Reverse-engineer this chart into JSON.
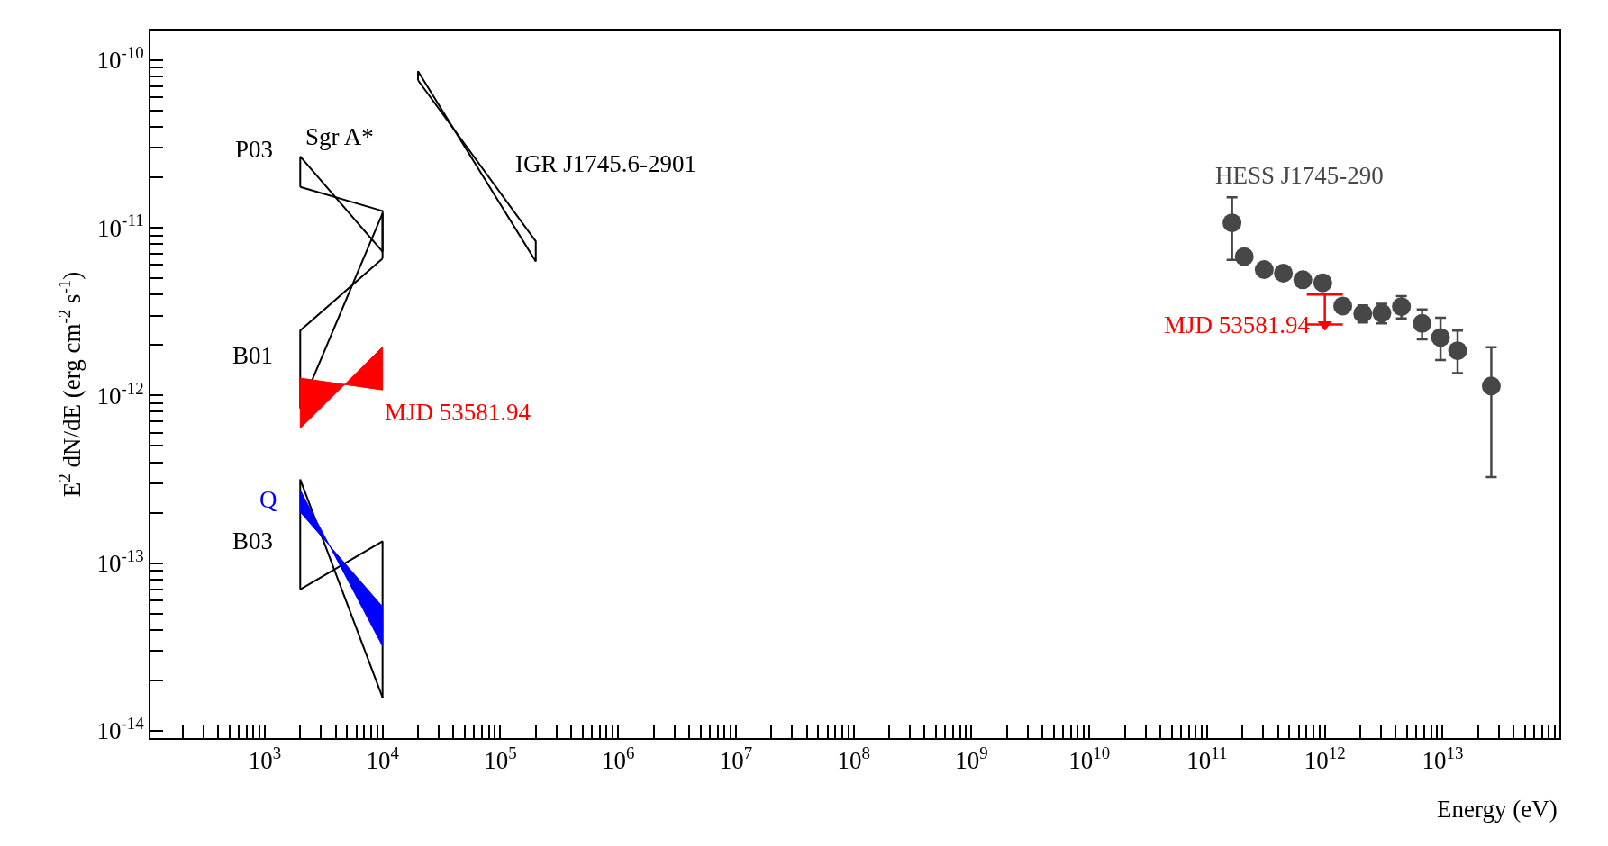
{
  "chart_data": {
    "type": "line",
    "xlabel": "Energy (eV)",
    "ylabel": "E$^{2}$ dN/dE (erg cm$^{-2}$ s$^{-1}$)",
    "log": "xy",
    "grid": false,
    "legend": false,
    "xlim": [
      107,
      98000000000000.0
    ],
    "ylim": [
      9.06e-15,
      1.5e-10
    ],
    "xticks": [
      {
        "value": 200,
        "label": null
      },
      {
        "value": 300,
        "label": null
      },
      {
        "value": 400,
        "label": null
      },
      {
        "value": 500,
        "label": null
      },
      {
        "value": 600,
        "label": null
      },
      {
        "value": 700,
        "label": null
      },
      {
        "value": 800,
        "label": null
      },
      {
        "value": 900,
        "label": null
      },
      {
        "value": 1000.0,
        "label": "10$^{3}$"
      },
      {
        "value": 2000.0,
        "label": null
      },
      {
        "value": 3000.0,
        "label": null
      },
      {
        "value": 4000.0,
        "label": null
      },
      {
        "value": 5000.0,
        "label": null
      },
      {
        "value": 6000.0,
        "label": null
      },
      {
        "value": 7000.0,
        "label": null
      },
      {
        "value": 8000.0,
        "label": null
      },
      {
        "value": 9000.0,
        "label": null
      },
      {
        "value": 10000.0,
        "label": "10$^{4}$"
      },
      {
        "value": 20000.0,
        "label": null
      },
      {
        "value": 30000.0,
        "label": null
      },
      {
        "value": 40000.0,
        "label": null
      },
      {
        "value": 50000.0,
        "label": null
      },
      {
        "value": 60000.0,
        "label": null
      },
      {
        "value": 70000.0,
        "label": null
      },
      {
        "value": 80000.0,
        "label": null
      },
      {
        "value": 90000.0,
        "label": null
      },
      {
        "value": 100000.0,
        "label": "10$^{5}$"
      },
      {
        "value": 200000.0,
        "label": null
      },
      {
        "value": 300000.0,
        "label": null
      },
      {
        "value": 400000.0,
        "label": null
      },
      {
        "value": 500000.0,
        "label": null
      },
      {
        "value": 600000.0,
        "label": null
      },
      {
        "value": 700000.0,
        "label": null
      },
      {
        "value": 800000.0,
        "label": null
      },
      {
        "value": 900000.0,
        "label": null
      },
      {
        "value": 1000000.0,
        "label": "10$^{6}$"
      },
      {
        "value": 2000000.0,
        "label": null
      },
      {
        "value": 3000000.0,
        "label": null
      },
      {
        "value": 4000000.0,
        "label": null
      },
      {
        "value": 5000000.0,
        "label": null
      },
      {
        "value": 6000000.0,
        "label": null
      },
      {
        "value": 7000000.0,
        "label": null
      },
      {
        "value": 8000000.0,
        "label": null
      },
      {
        "value": 9000000.0,
        "label": null
      },
      {
        "value": 10000000.0,
        "label": "10$^{7}$"
      },
      {
        "value": 20000000.0,
        "label": null
      },
      {
        "value": 30000000.0,
        "label": null
      },
      {
        "value": 40000000.0,
        "label": null
      },
      {
        "value": 50000000.0,
        "label": null
      },
      {
        "value": 60000000.0,
        "label": null
      },
      {
        "value": 70000000.0,
        "label": null
      },
      {
        "value": 80000000.0,
        "label": null
      },
      {
        "value": 90000000.0,
        "label": null
      },
      {
        "value": 100000000.0,
        "label": "10$^{8}$"
      },
      {
        "value": 200000000.0,
        "label": null
      },
      {
        "value": 300000000.0,
        "label": null
      },
      {
        "value": 400000000.0,
        "label": null
      },
      {
        "value": 500000000.0,
        "label": null
      },
      {
        "value": 600000000.0,
        "label": null
      },
      {
        "value": 700000000.0,
        "label": null
      },
      {
        "value": 800000000.0,
        "label": null
      },
      {
        "value": 900000000.0,
        "label": null
      },
      {
        "value": 1000000000.0,
        "label": "10$^{9}$"
      },
      {
        "value": 2000000000.0,
        "label": null
      },
      {
        "value": 3000000000.0,
        "label": null
      },
      {
        "value": 4000000000.0,
        "label": null
      },
      {
        "value": 5000000000.0,
        "label": null
      },
      {
        "value": 6000000000.0,
        "label": null
      },
      {
        "value": 7000000000.0,
        "label": null
      },
      {
        "value": 8000000000.0,
        "label": null
      },
      {
        "value": 9000000000.0,
        "label": null
      },
      {
        "value": 10000000000.0,
        "label": "10$^{10}$"
      },
      {
        "value": 20000000000.0,
        "label": null
      },
      {
        "value": 30000000000.0,
        "label": null
      },
      {
        "value": 40000000000.0,
        "label": null
      },
      {
        "value": 50000000000.0,
        "label": null
      },
      {
        "value": 60000000000.0,
        "label": null
      },
      {
        "value": 70000000000.0,
        "label": null
      },
      {
        "value": 80000000000.0,
        "label": null
      },
      {
        "value": 90000000000.0,
        "label": null
      },
      {
        "value": 100000000000.0,
        "label": "10$^{11}$"
      },
      {
        "value": 200000000000.0,
        "label": null
      },
      {
        "value": 300000000000.0,
        "label": null
      },
      {
        "value": 400000000000.0,
        "label": null
      },
      {
        "value": 500000000000.0,
        "label": null
      },
      {
        "value": 600000000000.0,
        "label": null
      },
      {
        "value": 700000000000.0,
        "label": null
      },
      {
        "value": 800000000000.0,
        "label": null
      },
      {
        "value": 900000000000.0,
        "label": null
      },
      {
        "value": 1000000000000.0,
        "label": "10$^{12}$"
      },
      {
        "value": 2000000000000.0,
        "label": null
      },
      {
        "value": 3000000000000.0,
        "label": null
      },
      {
        "value": 4000000000000.0,
        "label": null
      },
      {
        "value": 5000000000000.0,
        "label": null
      },
      {
        "value": 6000000000000.0,
        "label": null
      },
      {
        "value": 7000000000000.0,
        "label": null
      },
      {
        "value": 8000000000000.0,
        "label": null
      },
      {
        "value": 9000000000000.0,
        "label": null
      },
      {
        "value": 10000000000000.0,
        "label": "10$^{13}$"
      },
      {
        "value": 20000000000000.0,
        "label": null
      },
      {
        "value": 30000000000000.0,
        "label": null
      },
      {
        "value": 40000000000000.0,
        "label": null
      },
      {
        "value": 50000000000000.0,
        "label": null
      },
      {
        "value": 60000000000000.0,
        "label": null
      },
      {
        "value": 70000000000000.0,
        "label": null
      },
      {
        "value": 80000000000000.0,
        "label": null
      },
      {
        "value": 90000000000000.0,
        "label": null
      }
    ],
    "yticks": [
      {
        "value": 1e-14,
        "label": "10$^{-14}$"
      },
      {
        "value": 2e-14,
        "label": null
      },
      {
        "value": 3e-14,
        "label": null
      },
      {
        "value": 4e-14,
        "label": null
      },
      {
        "value": 5e-14,
        "label": null
      },
      {
        "value": 6e-14,
        "label": null
      },
      {
        "value": 7e-14,
        "label": null
      },
      {
        "value": 8e-14,
        "label": null
      },
      {
        "value": 9e-14,
        "label": null
      },
      {
        "value": 1e-13,
        "label": "10$^{-13}$"
      },
      {
        "value": 2e-13,
        "label": null
      },
      {
        "value": 3e-13,
        "label": null
      },
      {
        "value": 4e-13,
        "label": null
      },
      {
        "value": 5e-13,
        "label": null
      },
      {
        "value": 6e-13,
        "label": null
      },
      {
        "value": 7e-13,
        "label": null
      },
      {
        "value": 8e-13,
        "label": null
      },
      {
        "value": 9e-13,
        "label": null
      },
      {
        "value": 1e-12,
        "label": "10$^{-12}$"
      },
      {
        "value": 2e-12,
        "label": null
      },
      {
        "value": 3e-12,
        "label": null
      },
      {
        "value": 4e-12,
        "label": null
      },
      {
        "value": 5e-12,
        "label": null
      },
      {
        "value": 6e-12,
        "label": null
      },
      {
        "value": 7e-12,
        "label": null
      },
      {
        "value": 8e-12,
        "label": null
      },
      {
        "value": 9e-12,
        "label": null
      },
      {
        "value": 1e-11,
        "label": "10$^{-11}$"
      },
      {
        "value": 2e-11,
        "label": null
      },
      {
        "value": 3e-11,
        "label": null
      },
      {
        "value": 4e-11,
        "label": null
      },
      {
        "value": 5e-11,
        "label": null
      },
      {
        "value": 6e-11,
        "label": null
      },
      {
        "value": 7e-11,
        "label": null
      },
      {
        "value": 8e-11,
        "label": null
      },
      {
        "value": 9e-11,
        "label": null
      },
      {
        "value": 1e-10,
        "label": "10$^{-10}$"
      }
    ],
    "series": [
      {
        "name": "P03",
        "color": "#000000",
        "marker": "none",
        "x": [
          2000,
          2000,
          10000
        ],
        "values": [
          1.75e-11,
          2.66e-11,
          7.2e-12
        ]
      },
      {
        "color": "#000000",
        "marker": "none",
        "x": [
          2000,
          10000,
          10000
        ],
        "values": [
          1.75e-11,
          1.26e-11,
          7.2e-12
        ]
      },
      {
        "name": "B01",
        "color": "#000000",
        "marker": "none",
        "x": [
          2000,
          2000,
          10000
        ],
        "values": [
          8.4e-13,
          2.44e-12,
          6.56e-12
        ]
      },
      {
        "color": "#000000",
        "marker": "none",
        "x": [
          2000,
          10000,
          10000
        ],
        "values": [
          8.4e-13,
          1.22e-11,
          6.56e-12
        ]
      },
      {
        "name": "MJD 53581.94",
        "type": "area",
        "color": "#ff0000",
        "x": [
          2000,
          10000,
          10000,
          2000,
          2000
        ],
        "values": [
          1.27e-12,
          1.08e-12,
          1.95e-12,
          6.37e-13,
          1.27e-12
        ]
      },
      {
        "name": "IGR J1745.6-2901",
        "color": "#000000",
        "marker": "none",
        "x": [
          20000,
          20000,
          200000
        ],
        "values": [
          7.58e-11,
          8.57e-11,
          6.3e-12
        ]
      },
      {
        "color": "#000000",
        "marker": "none",
        "x": [
          20000,
          200000,
          200000
        ],
        "values": [
          7.58e-11,
          8.3e-12,
          6.3e-12
        ]
      },
      {
        "name": "B03",
        "color": "#000000",
        "marker": "none",
        "x": [
          2000,
          2000,
          10000
        ],
        "values": [
          6.98e-14,
          3.16e-13,
          1.58e-14
        ]
      },
      {
        "color": "#000000",
        "marker": "none",
        "x": [
          2000,
          10000,
          10000
        ],
        "values": [
          6.98e-14,
          1.35e-13,
          1.58e-14
        ]
      },
      {
        "name": "Q",
        "type": "area",
        "color": "#0000ff",
        "x": [
          2000,
          10000,
          10000,
          2000,
          2000
        ],
        "values": [
          2.73e-13,
          3.2e-14,
          5.5e-14,
          2.02e-13,
          2.73e-13
        ]
      },
      {
        "name": "HESS J1745-290",
        "type": "scatter",
        "color": "#474747",
        "marker": "circle",
        "x": [
          163000000000.0,
          207000000000.0,
          306000000000.0,
          445000000000.0,
          650000000000.0,
          960000000000.0,
          1420000000000.0,
          2100000000000.0,
          3050000000000.0,
          4470000000000.0,
          6700000000000.0,
          9600000000000.0,
          13400000000000.0,
          25900000000000.0
        ],
        "values": [
          1.07e-11,
          6.73e-12,
          5.63e-12,
          5.37e-12,
          4.9e-12,
          4.7e-12,
          3.42e-12,
          3.08e-12,
          3.1e-12,
          3.39e-12,
          2.69e-12,
          2.22e-12,
          1.85e-12,
          1.14e-12
        ],
        "errors": [
          [
            6.44e-12,
            1.52e-11
          ],
          null,
          null,
          null,
          null,
          null,
          null,
          [
            2.73e-12,
            3.45e-12
          ],
          [
            2.69e-12,
            3.52e-12
          ],
          [
            2.88e-12,
            3.91e-12
          ],
          [
            2.16e-12,
            3.26e-12
          ],
          [
            1.63e-12,
            2.91e-12
          ],
          [
            1.36e-12,
            2.44e-12
          ],
          [
            3.26e-13,
            1.94e-12
          ]
        ]
      },
      {
        "name": "MJD 53581.94",
        "type": "scatter",
        "color": "#ff0000",
        "marker": "triangle",
        "x": [
          1000000000000.0
        ],
        "values": [
          2.65e-12
        ],
        "errors": [
          [
            2.65e-12,
            4e-12
          ]
        ]
      }
    ],
    "annotations": [
      "Sgr A*"
    ]
  }
}
